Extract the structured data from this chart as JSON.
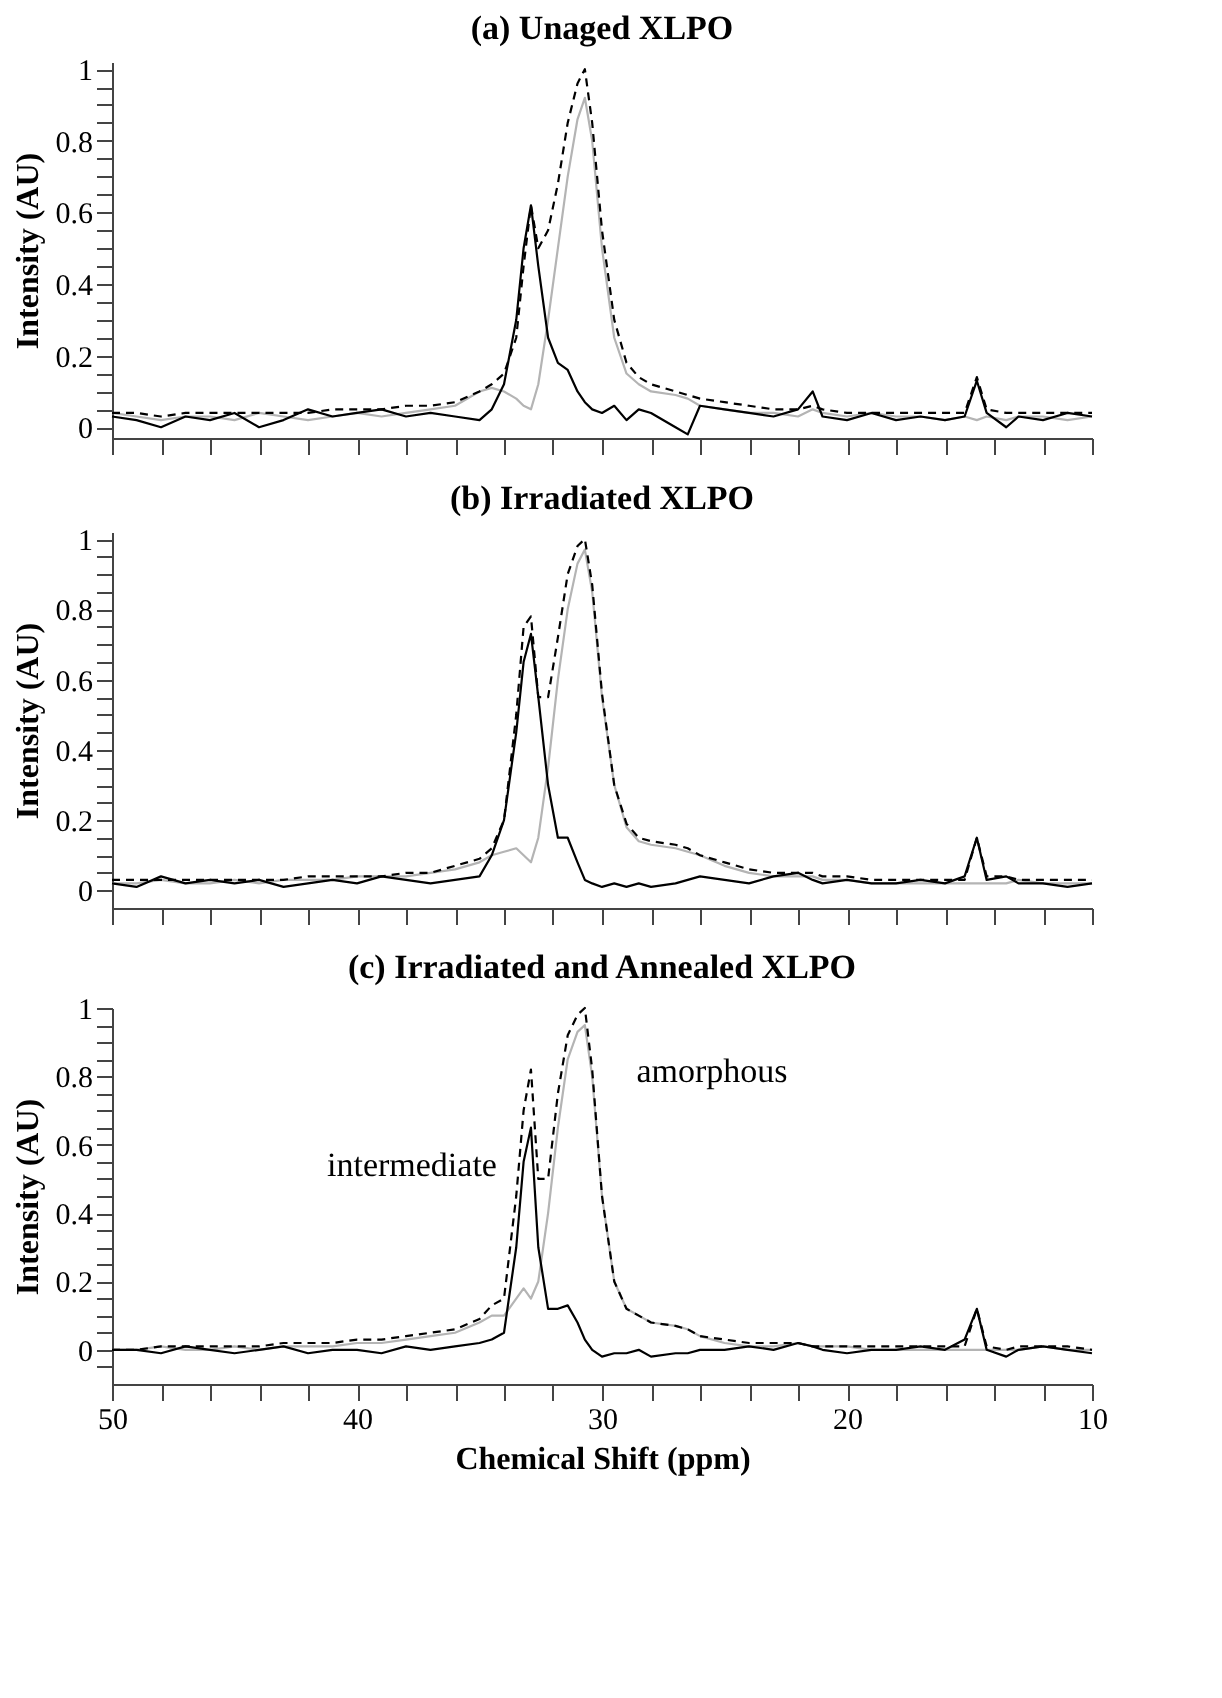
{
  "chart_data": [
    {
      "type": "line",
      "title": "(a) Unaged XLPO",
      "ylabel": "Intensity (AU)",
      "tick_labels": "y",
      "xlim": [
        50,
        10
      ],
      "ylim": [
        -0.03,
        1.02
      ],
      "xticks": [
        50,
        {
          "value": 48,
          "label": null
        },
        {
          "value": 46,
          "label": null
        },
        {
          "value": 44,
          "label": null
        },
        {
          "value": 42,
          "label": null
        },
        40,
        {
          "value": 38,
          "label": null
        },
        {
          "value": 36,
          "label": null
        },
        {
          "value": 34,
          "label": null
        },
        {
          "value": 32,
          "label": null
        },
        30,
        {
          "value": 28,
          "label": null
        },
        {
          "value": 26,
          "label": null
        },
        {
          "value": 24,
          "label": null
        },
        {
          "value": 22,
          "label": null
        },
        20,
        {
          "value": 18,
          "label": null
        },
        {
          "value": 16,
          "label": null
        },
        {
          "value": 14,
          "label": null
        },
        {
          "value": 12,
          "label": null
        },
        10
      ],
      "yticks": [
        0,
        {
          "value": 0.05,
          "label": null
        },
        {
          "value": 0.1,
          "label": null
        },
        {
          "value": 0.15,
          "label": null
        },
        0.2,
        {
          "value": 0.25,
          "label": null
        },
        {
          "value": 0.3,
          "label": null
        },
        {
          "value": 0.35,
          "label": null
        },
        0.4,
        {
          "value": 0.45,
          "label": null
        },
        {
          "value": 0.5,
          "label": null
        },
        {
          "value": 0.55,
          "label": null
        },
        0.6,
        {
          "value": 0.65,
          "label": null
        },
        {
          "value": 0.7,
          "label": null
        },
        {
          "value": 0.75,
          "label": null
        },
        0.8,
        {
          "value": 0.85,
          "label": null
        },
        {
          "value": 0.9,
          "label": null
        },
        {
          "value": 0.95,
          "label": null
        },
        1
      ],
      "x": [
        50,
        49,
        48,
        47,
        46,
        45,
        44,
        43,
        42,
        41,
        40,
        39,
        38,
        37,
        36,
        35,
        34.5,
        34,
        33.5,
        33.2,
        32.9,
        32.6,
        32.2,
        31.8,
        31.4,
        31,
        30.7,
        30.4,
        30,
        29.5,
        29,
        28.5,
        28,
        27,
        26.5,
        26,
        25,
        24,
        23,
        22,
        21.4,
        21,
        20,
        19,
        18,
        17,
        16,
        15.2,
        14.7,
        14.3,
        13.5,
        13,
        12,
        11,
        10
      ],
      "series": [
        {
          "color": "#b4b4b4",
          "line_style": "solid",
          "values": [
            0.04,
            0.03,
            0.02,
            0.03,
            0.03,
            0.02,
            0.04,
            0.03,
            0.02,
            0.03,
            0.04,
            0.03,
            0.04,
            0.05,
            0.06,
            0.1,
            0.11,
            0.1,
            0.08,
            0.06,
            0.05,
            0.12,
            0.3,
            0.5,
            0.7,
            0.86,
            0.92,
            0.8,
            0.5,
            0.25,
            0.15,
            0.12,
            0.1,
            0.09,
            0.08,
            0.06,
            0.05,
            0.04,
            0.04,
            0.03,
            0.05,
            0.04,
            0.03,
            0.04,
            0.03,
            0.03,
            0.02,
            0.03,
            0.02,
            0.03,
            0.02,
            0.03,
            0.03,
            0.02,
            0.03
          ]
        },
        {
          "color": "#000000",
          "line_style": "solid",
          "values": [
            0.03,
            0.02,
            0.0,
            0.03,
            0.02,
            0.04,
            0.0,
            0.02,
            0.05,
            0.03,
            0.04,
            0.05,
            0.03,
            0.04,
            0.03,
            0.02,
            0.05,
            0.12,
            0.3,
            0.5,
            0.62,
            0.45,
            0.25,
            0.18,
            0.16,
            0.1,
            0.07,
            0.05,
            0.04,
            0.06,
            0.02,
            0.05,
            0.04,
            0.0,
            -0.02,
            0.06,
            0.05,
            0.04,
            0.03,
            0.05,
            0.1,
            0.03,
            0.02,
            0.04,
            0.02,
            0.03,
            0.02,
            0.03,
            0.13,
            0.04,
            0.0,
            0.03,
            0.02,
            0.04,
            0.03
          ]
        },
        {
          "color": "#000000",
          "line_style": "dashed",
          "values": [
            0.04,
            0.04,
            0.03,
            0.04,
            0.04,
            0.04,
            0.04,
            0.04,
            0.04,
            0.05,
            0.05,
            0.05,
            0.06,
            0.06,
            0.07,
            0.1,
            0.12,
            0.15,
            0.25,
            0.45,
            0.62,
            0.5,
            0.55,
            0.68,
            0.85,
            0.96,
            1.0,
            0.85,
            0.55,
            0.3,
            0.18,
            0.14,
            0.12,
            0.1,
            0.09,
            0.08,
            0.07,
            0.06,
            0.05,
            0.05,
            0.06,
            0.05,
            0.04,
            0.04,
            0.04,
            0.04,
            0.04,
            0.04,
            0.14,
            0.05,
            0.04,
            0.04,
            0.04,
            0.04,
            0.04
          ]
        }
      ]
    },
    {
      "type": "line",
      "title": "(b) Irradiated XLPO",
      "ylabel": "Intensity (AU)",
      "tick_labels": "y",
      "xlim": [
        50,
        10
      ],
      "ylim": [
        -0.05,
        1.02
      ],
      "xticks": [
        50,
        {
          "value": 48,
          "label": null
        },
        {
          "value": 46,
          "label": null
        },
        {
          "value": 44,
          "label": null
        },
        {
          "value": 42,
          "label": null
        },
        40,
        {
          "value": 38,
          "label": null
        },
        {
          "value": 36,
          "label": null
        },
        {
          "value": 34,
          "label": null
        },
        {
          "value": 32,
          "label": null
        },
        30,
        {
          "value": 28,
          "label": null
        },
        {
          "value": 26,
          "label": null
        },
        {
          "value": 24,
          "label": null
        },
        {
          "value": 22,
          "label": null
        },
        20,
        {
          "value": 18,
          "label": null
        },
        {
          "value": 16,
          "label": null
        },
        {
          "value": 14,
          "label": null
        },
        {
          "value": 12,
          "label": null
        },
        10
      ],
      "yticks": [
        0,
        {
          "value": 0.05,
          "label": null
        },
        {
          "value": 0.1,
          "label": null
        },
        {
          "value": 0.15,
          "label": null
        },
        0.2,
        {
          "value": 0.25,
          "label": null
        },
        {
          "value": 0.3,
          "label": null
        },
        {
          "value": 0.35,
          "label": null
        },
        0.4,
        {
          "value": 0.45,
          "label": null
        },
        {
          "value": 0.5,
          "label": null
        },
        {
          "value": 0.55,
          "label": null
        },
        0.6,
        {
          "value": 0.65,
          "label": null
        },
        {
          "value": 0.7,
          "label": null
        },
        {
          "value": 0.75,
          "label": null
        },
        0.8,
        {
          "value": 0.85,
          "label": null
        },
        {
          "value": 0.9,
          "label": null
        },
        {
          "value": 0.95,
          "label": null
        },
        1
      ],
      "x": [
        50,
        49,
        48,
        47,
        46,
        45,
        44,
        43,
        42,
        41,
        40,
        39,
        38,
        37,
        36,
        35,
        34.5,
        34,
        33.5,
        33.2,
        32.9,
        32.6,
        32.2,
        31.8,
        31.4,
        31,
        30.7,
        30.4,
        30,
        29.5,
        29,
        28.5,
        28,
        27,
        26.5,
        26,
        25,
        24,
        23,
        22,
        21.4,
        21,
        20,
        19,
        18,
        17,
        16,
        15.2,
        14.7,
        14.3,
        13.5,
        13,
        12,
        11,
        10
      ],
      "series": [
        {
          "color": "#b4b4b4",
          "line_style": "solid",
          "values": [
            0.02,
            0.02,
            0.03,
            0.02,
            0.02,
            0.03,
            0.02,
            0.03,
            0.03,
            0.03,
            0.04,
            0.04,
            0.04,
            0.05,
            0.06,
            0.08,
            0.1,
            0.11,
            0.12,
            0.1,
            0.08,
            0.15,
            0.35,
            0.6,
            0.8,
            0.93,
            0.97,
            0.85,
            0.55,
            0.3,
            0.18,
            0.14,
            0.13,
            0.12,
            0.11,
            0.1,
            0.07,
            0.05,
            0.04,
            0.04,
            0.04,
            0.03,
            0.03,
            0.02,
            0.02,
            0.02,
            0.02,
            0.02,
            0.02,
            0.02,
            0.02,
            0.03,
            0.02,
            0.02,
            0.02
          ]
        },
        {
          "color": "#000000",
          "line_style": "solid",
          "values": [
            0.02,
            0.01,
            0.04,
            0.02,
            0.03,
            0.02,
            0.03,
            0.01,
            0.02,
            0.03,
            0.02,
            0.04,
            0.03,
            0.02,
            0.03,
            0.04,
            0.1,
            0.2,
            0.45,
            0.65,
            0.73,
            0.55,
            0.3,
            0.15,
            0.15,
            0.08,
            0.03,
            0.02,
            0.01,
            0.02,
            0.01,
            0.02,
            0.01,
            0.02,
            0.03,
            0.04,
            0.03,
            0.02,
            0.04,
            0.05,
            0.03,
            0.02,
            0.03,
            0.02,
            0.02,
            0.03,
            0.02,
            0.04,
            0.15,
            0.03,
            0.04,
            0.02,
            0.02,
            0.01,
            0.02
          ]
        },
        {
          "color": "#000000",
          "line_style": "dashed",
          "values": [
            0.03,
            0.03,
            0.03,
            0.03,
            0.03,
            0.03,
            0.03,
            0.03,
            0.04,
            0.04,
            0.04,
            0.04,
            0.05,
            0.05,
            0.07,
            0.09,
            0.12,
            0.2,
            0.5,
            0.75,
            0.78,
            0.55,
            0.55,
            0.72,
            0.9,
            0.98,
            1.0,
            0.87,
            0.56,
            0.3,
            0.19,
            0.15,
            0.14,
            0.13,
            0.12,
            0.1,
            0.08,
            0.06,
            0.05,
            0.05,
            0.05,
            0.04,
            0.04,
            0.03,
            0.03,
            0.03,
            0.03,
            0.03,
            0.15,
            0.04,
            0.04,
            0.03,
            0.03,
            0.03,
            0.03
          ]
        }
      ]
    },
    {
      "type": "line",
      "title": "(c) Irradiated and Annealed XLPO",
      "ylabel": "Intensity (AU)",
      "xlabel": "Chemical Shift (ppm)",
      "xlim": [
        50,
        10
      ],
      "ylim": [
        -0.1,
        1.0
      ],
      "xticks": [
        50,
        {
          "value": 48,
          "label": null
        },
        {
          "value": 46,
          "label": null
        },
        {
          "value": 44,
          "label": null
        },
        {
          "value": 42,
          "label": null
        },
        40,
        {
          "value": 38,
          "label": null
        },
        {
          "value": 36,
          "label": null
        },
        {
          "value": 34,
          "label": null
        },
        {
          "value": 32,
          "label": null
        },
        30,
        {
          "value": 28,
          "label": null
        },
        {
          "value": 26,
          "label": null
        },
        {
          "value": 24,
          "label": null
        },
        {
          "value": 22,
          "label": null
        },
        20,
        {
          "value": 18,
          "label": null
        },
        {
          "value": 16,
          "label": null
        },
        {
          "value": 14,
          "label": null
        },
        {
          "value": 12,
          "label": null
        },
        10
      ],
      "yticks": [
        {
          "value": -0.05,
          "label": null
        },
        0,
        {
          "value": 0.05,
          "label": null
        },
        {
          "value": 0.1,
          "label": null
        },
        {
          "value": 0.15,
          "label": null
        },
        0.2,
        {
          "value": 0.25,
          "label": null
        },
        {
          "value": 0.3,
          "label": null
        },
        {
          "value": 0.35,
          "label": null
        },
        0.4,
        {
          "value": 0.45,
          "label": null
        },
        {
          "value": 0.5,
          "label": null
        },
        {
          "value": 0.55,
          "label": null
        },
        0.6,
        {
          "value": 0.65,
          "label": null
        },
        {
          "value": 0.7,
          "label": null
        },
        {
          "value": 0.75,
          "label": null
        },
        0.8,
        {
          "value": 0.85,
          "label": null
        },
        {
          "value": 0.9,
          "label": null
        },
        {
          "value": 0.95,
          "label": null
        },
        1
      ],
      "x": [
        50,
        49,
        48,
        47,
        46,
        45,
        44,
        43,
        42,
        41,
        40,
        39,
        38,
        37,
        36,
        35,
        34.5,
        34,
        33.5,
        33.2,
        32.9,
        32.6,
        32.2,
        31.8,
        31.4,
        31,
        30.7,
        30.4,
        30,
        29.5,
        29,
        28.5,
        28,
        27,
        26.5,
        26,
        25,
        24,
        23,
        22,
        21.4,
        21,
        20,
        19,
        18,
        17,
        16,
        15.2,
        14.7,
        14.3,
        13.5,
        13,
        12,
        11,
        10
      ],
      "series": [
        {
          "color": "#b4b4b4",
          "line_style": "solid",
          "values": [
            0.0,
            0.0,
            0.01,
            0.0,
            0.0,
            0.01,
            0.0,
            0.01,
            0.01,
            0.01,
            0.02,
            0.02,
            0.03,
            0.04,
            0.05,
            0.08,
            0.1,
            0.1,
            0.15,
            0.18,
            0.15,
            0.2,
            0.4,
            0.65,
            0.85,
            0.93,
            0.95,
            0.8,
            0.45,
            0.2,
            0.12,
            0.1,
            0.08,
            0.07,
            0.06,
            0.04,
            0.02,
            0.01,
            0.01,
            0.02,
            0.01,
            0.01,
            0.01,
            0.0,
            0.0,
            0.0,
            0.0,
            0.0,
            0.0,
            0.0,
            0.0,
            0.0,
            0.01,
            0.0,
            0.0
          ]
        },
        {
          "color": "#000000",
          "line_style": "solid",
          "values": [
            0.0,
            0.0,
            -0.01,
            0.01,
            0.0,
            -0.01,
            0.0,
            0.01,
            -0.01,
            0.0,
            0.0,
            -0.01,
            0.01,
            0.0,
            0.01,
            0.02,
            0.03,
            0.05,
            0.3,
            0.55,
            0.65,
            0.3,
            0.12,
            0.12,
            0.13,
            0.08,
            0.03,
            0.0,
            -0.02,
            -0.01,
            -0.01,
            0.0,
            -0.02,
            -0.01,
            -0.01,
            0.0,
            0.0,
            0.01,
            0.0,
            0.02,
            0.01,
            0.0,
            -0.01,
            0.0,
            0.0,
            0.01,
            0.0,
            0.03,
            0.12,
            0.0,
            -0.02,
            0.0,
            0.01,
            0.0,
            -0.01
          ]
        },
        {
          "color": "#000000",
          "line_style": "dashed",
          "values": [
            0.0,
            0.0,
            0.01,
            0.01,
            0.01,
            0.01,
            0.01,
            0.02,
            0.02,
            0.02,
            0.03,
            0.03,
            0.04,
            0.05,
            0.06,
            0.09,
            0.13,
            0.15,
            0.45,
            0.7,
            0.82,
            0.5,
            0.5,
            0.75,
            0.92,
            0.98,
            1.0,
            0.82,
            0.45,
            0.2,
            0.12,
            0.1,
            0.08,
            0.07,
            0.06,
            0.04,
            0.03,
            0.02,
            0.02,
            0.02,
            0.01,
            0.01,
            0.01,
            0.01,
            0.01,
            0.01,
            0.01,
            0.01,
            0.12,
            0.01,
            0.0,
            0.01,
            0.01,
            0.01,
            0.0
          ]
        }
      ],
      "annotations": [
        "intermediate",
        "amorphous"
      ]
    }
  ]
}
